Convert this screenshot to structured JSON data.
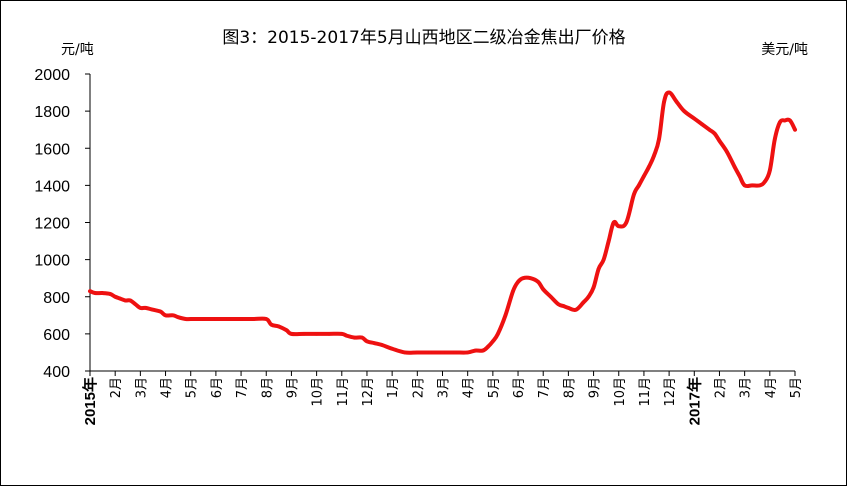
{
  "chart_data": {
    "type": "line",
    "title": "图3：2015-2017年5月山西地区二级冶金焦出厂价格",
    "ylabel_left": "元/吨",
    "ylabel_right": "美元/吨",
    "ylim": [
      400,
      2000
    ],
    "yticks": [
      "400",
      "600",
      "800",
      "1000",
      "1200",
      "1400",
      "1600",
      "1800",
      "2000"
    ],
    "grid": false,
    "legend": "none",
    "line_color": "#ee1111",
    "xticks": [
      "2015年",
      "2月",
      "3月",
      "4月",
      "5月",
      "6月",
      "7月",
      "8月",
      "9月",
      "10月",
      "11月",
      "12月",
      "1月",
      "2月",
      "3月",
      "4月",
      "5月",
      "6月",
      "7月",
      "8月",
      "9月",
      "10月",
      "11月",
      "12月",
      "2017年",
      "2月",
      "3月",
      "4月",
      "5月"
    ],
    "series": [
      {
        "x": [
          0,
          0.2,
          0.5,
          0.8,
          1.0,
          1.2,
          1.4,
          1.6,
          1.8,
          2.0,
          2.2,
          2.5,
          2.8,
          3.0,
          3.3,
          3.5,
          3.8,
          4.0,
          4.5,
          5.0,
          5.5,
          6.0,
          6.5,
          7.0,
          7.2,
          7.5,
          7.8,
          8.0,
          8.5,
          9.0,
          9.5,
          10.0,
          10.2,
          10.5,
          10.8,
          11.0,
          11.3,
          11.6,
          12.0,
          12.5,
          13.0,
          13.5,
          14.0,
          14.5,
          15.0,
          15.3,
          15.6,
          15.8,
          16.0,
          16.2,
          16.5,
          16.8,
          17.0,
          17.2,
          17.5,
          17.8,
          18.0,
          18.3,
          18.6,
          18.8,
          19.0,
          19.3,
          19.6,
          19.8,
          20.0,
          20.2,
          20.4,
          20.6,
          20.8,
          21.0,
          21.3,
          21.6,
          21.8,
          22.0,
          22.2,
          22.4,
          22.6,
          22.8,
          23.0,
          23.3,
          23.6,
          24.0,
          24.3,
          24.6,
          24.8,
          25.0,
          25.3,
          25.6,
          25.8,
          26.0,
          26.3,
          26.6,
          26.8,
          27.0,
          27.2,
          27.4,
          27.6,
          27.8,
          28.0
        ],
        "values": [
          830,
          820,
          820,
          815,
          800,
          790,
          780,
          780,
          760,
          740,
          740,
          730,
          720,
          700,
          700,
          690,
          680,
          680,
          680,
          680,
          680,
          680,
          680,
          680,
          650,
          640,
          620,
          600,
          600,
          600,
          600,
          600,
          590,
          580,
          580,
          560,
          550,
          540,
          520,
          500,
          500,
          500,
          500,
          500,
          500,
          510,
          510,
          530,
          560,
          600,
          700,
          830,
          880,
          900,
          900,
          880,
          840,
          800,
          760,
          750,
          740,
          730,
          770,
          800,
          850,
          950,
          1000,
          1100,
          1200,
          1180,
          1200,
          1350,
          1400,
          1450,
          1500,
          1560,
          1650,
          1850,
          1900,
          1850,
          1800,
          1760,
          1730,
          1700,
          1680,
          1640,
          1580,
          1500,
          1450,
          1400,
          1400,
          1400,
          1420,
          1480,
          1650,
          1740,
          1750,
          1750,
          1700
        ]
      }
    ]
  }
}
